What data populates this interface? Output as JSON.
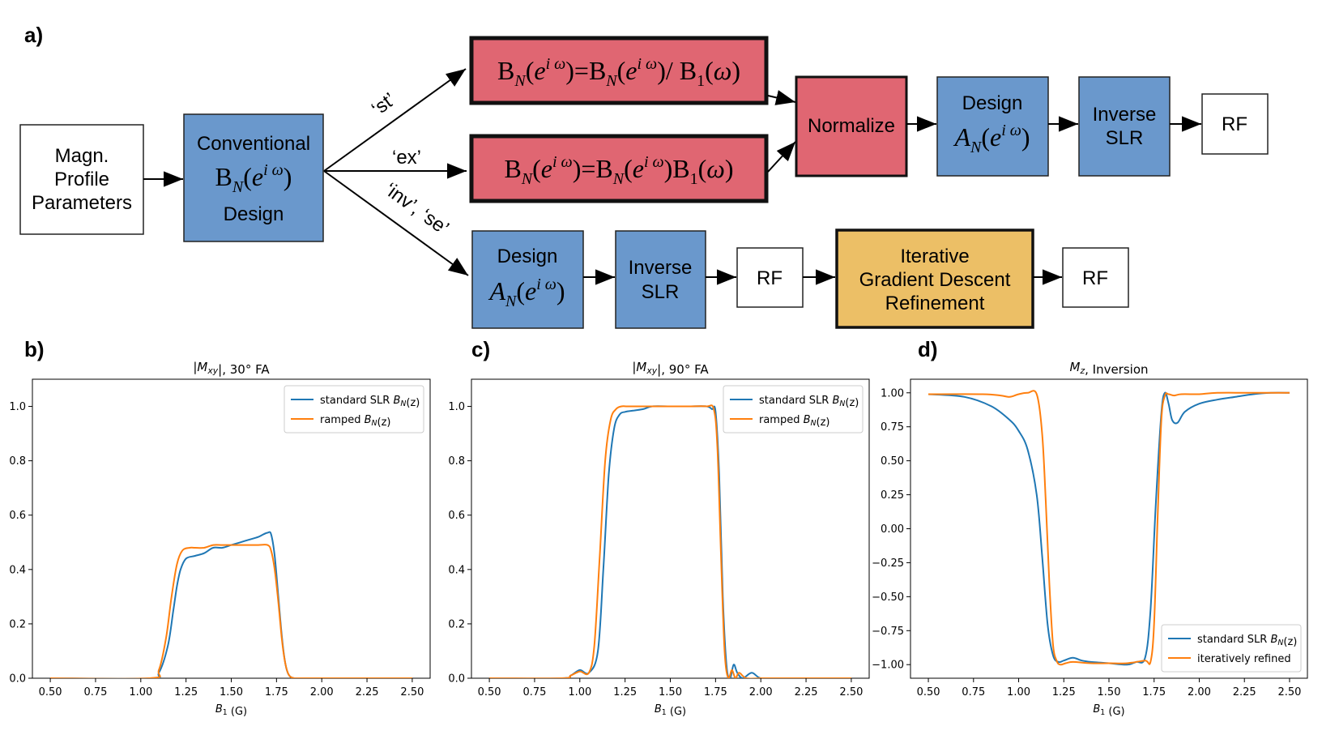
{
  "colors": {
    "blue_box": "#6a98cc",
    "red_box": "#e06672",
    "yellow_box": "#ecbf66",
    "series_blue": "#1f77b4",
    "series_orange": "#ff7f0e"
  },
  "diagram": {
    "panel_label": "a)",
    "magn_profile": [
      "Magn.",
      "Profile",
      "Parameters"
    ],
    "conventional": {
      "top": "Conventional",
      "bottom": "Design"
    },
    "branch_labels": {
      "st": "‘st’",
      "ex": "‘ex’",
      "inv_se": "‘inv’, ‘se’"
    },
    "normalize": "Normalize",
    "design_label": "Design",
    "inverse_slr": [
      "Inverse",
      "SLR"
    ],
    "rf": "RF",
    "iterative": [
      "Iterative",
      "Gradient Descent",
      "Refinement"
    ]
  },
  "chart_data": [
    {
      "type": "line",
      "panel_label": "b)",
      "title": "|M_xy|, 30° FA",
      "xlabel": "B1 (G)",
      "xlim": [
        0.5,
        2.5
      ],
      "ylim": [
        0.0,
        1.1
      ],
      "xticks": [
        "0.50",
        "0.75",
        "1.00",
        "1.25",
        "1.50",
        "1.75",
        "2.00",
        "2.25",
        "2.50"
      ],
      "yticks": [
        "0.0",
        "0.2",
        "0.4",
        "0.6",
        "0.8",
        "1.0"
      ],
      "legend_position": "top-right",
      "series": [
        {
          "name": "standard SLR B_N(z)",
          "color": "#1f77b4",
          "x": [
            0.5,
            1.05,
            1.1,
            1.15,
            1.18,
            1.2,
            1.22,
            1.25,
            1.3,
            1.35,
            1.4,
            1.45,
            1.5,
            1.55,
            1.6,
            1.65,
            1.68,
            1.7,
            1.72,
            1.74,
            1.76,
            1.78,
            1.8,
            1.82,
            1.85,
            1.9,
            2.5
          ],
          "y": [
            0.0,
            0.0,
            0.02,
            0.12,
            0.25,
            0.34,
            0.4,
            0.44,
            0.45,
            0.46,
            0.48,
            0.48,
            0.49,
            0.5,
            0.51,
            0.52,
            0.53,
            0.535,
            0.53,
            0.45,
            0.3,
            0.15,
            0.05,
            0.01,
            0.0,
            0.0,
            0.0
          ]
        },
        {
          "name": "ramped B_N(z)",
          "color": "#ff7f0e",
          "x": [
            0.5,
            1.05,
            1.1,
            1.14,
            1.17,
            1.2,
            1.23,
            1.27,
            1.3,
            1.35,
            1.4,
            1.45,
            1.5,
            1.55,
            1.6,
            1.65,
            1.7,
            1.72,
            1.74,
            1.76,
            1.78,
            1.8,
            1.82,
            1.85,
            1.9,
            2.5
          ],
          "y": [
            0.0,
            0.0,
            0.03,
            0.15,
            0.3,
            0.42,
            0.47,
            0.48,
            0.48,
            0.48,
            0.49,
            0.49,
            0.49,
            0.49,
            0.49,
            0.49,
            0.49,
            0.47,
            0.4,
            0.28,
            0.14,
            0.05,
            0.01,
            0.0,
            0.0,
            0.0
          ]
        }
      ]
    },
    {
      "type": "line",
      "panel_label": "c)",
      "title": "|M_xy|, 90° FA",
      "xlabel": "B1 (G)",
      "xlim": [
        0.5,
        2.5
      ],
      "ylim": [
        0.0,
        1.1
      ],
      "xticks": [
        "0.50",
        "0.75",
        "1.00",
        "1.25",
        "1.50",
        "1.75",
        "2.00",
        "2.25",
        "2.50"
      ],
      "yticks": [
        "0.0",
        "0.2",
        "0.4",
        "0.6",
        "0.8",
        "1.0"
      ],
      "legend_position": "top-right",
      "series": [
        {
          "name": "standard SLR B_N(z)",
          "color": "#1f77b4",
          "x": [
            0.5,
            0.9,
            0.95,
            1.0,
            1.05,
            1.1,
            1.13,
            1.16,
            1.19,
            1.22,
            1.25,
            1.3,
            1.35,
            1.4,
            1.5,
            1.6,
            1.7,
            1.73,
            1.75,
            1.77,
            1.79,
            1.81,
            1.83,
            1.85,
            1.87,
            1.9,
            1.95,
            2.0,
            2.1,
            2.5
          ],
          "y": [
            0.0,
            0.0,
            0.01,
            0.03,
            0.02,
            0.1,
            0.4,
            0.75,
            0.92,
            0.97,
            0.98,
            0.985,
            0.99,
            1.0,
            1.0,
            1.0,
            1.0,
            0.99,
            0.98,
            0.75,
            0.3,
            0.05,
            0.0,
            0.05,
            0.02,
            0.0,
            0.02,
            0.0,
            0.0,
            0.0
          ]
        },
        {
          "name": "ramped B_N(z)",
          "color": "#ff7f0e",
          "x": [
            0.5,
            0.9,
            0.95,
            1.0,
            1.05,
            1.08,
            1.11,
            1.14,
            1.17,
            1.2,
            1.23,
            1.26,
            1.3,
            1.4,
            1.5,
            1.6,
            1.7,
            1.74,
            1.76,
            1.78,
            1.8,
            1.82,
            1.84,
            1.86,
            1.88,
            1.92,
            2.0,
            2.1,
            2.5
          ],
          "y": [
            0.0,
            0.0,
            0.01,
            0.025,
            0.02,
            0.12,
            0.45,
            0.8,
            0.95,
            0.99,
            1.0,
            1.0,
            1.0,
            1.0,
            1.0,
            1.0,
            1.0,
            0.99,
            0.85,
            0.45,
            0.1,
            0.0,
            0.03,
            0.0,
            0.02,
            0.0,
            0.0,
            0.0,
            0.0
          ]
        }
      ]
    },
    {
      "type": "line",
      "panel_label": "d)",
      "title": "M_z, Inversion",
      "xlabel": "B1 (G)",
      "xlim": [
        0.5,
        2.5
      ],
      "ylim": [
        -1.1,
        1.1
      ],
      "xticks": [
        "0.50",
        "0.75",
        "1.00",
        "1.25",
        "1.50",
        "1.75",
        "2.00",
        "2.25",
        "2.50"
      ],
      "yticks": [
        "1.00",
        "0.75",
        "0.50",
        "0.25",
        "0.00",
        "−0.25",
        "−0.50",
        "−0.75",
        "−1.00"
      ],
      "legend_position": "bottom-right",
      "series": [
        {
          "name": "standard SLR B_N(z)",
          "color": "#1f77b4",
          "x": [
            0.5,
            0.7,
            0.85,
            0.95,
            1.0,
            1.05,
            1.1,
            1.13,
            1.16,
            1.19,
            1.22,
            1.25,
            1.3,
            1.35,
            1.4,
            1.5,
            1.6,
            1.65,
            1.7,
            1.73,
            1.76,
            1.79,
            1.81,
            1.83,
            1.85,
            1.88,
            1.92,
            2.0,
            2.1,
            2.2,
            2.3,
            2.4,
            2.5
          ],
          "y": [
            0.99,
            0.97,
            0.9,
            0.8,
            0.72,
            0.58,
            0.25,
            -0.2,
            -0.7,
            -0.93,
            -0.98,
            -0.97,
            -0.95,
            -0.97,
            -0.98,
            -0.99,
            -1.0,
            -0.98,
            -0.95,
            -0.6,
            0.2,
            0.85,
            1.0,
            0.92,
            0.8,
            0.78,
            0.86,
            0.92,
            0.95,
            0.97,
            0.99,
            1.0,
            1.0
          ]
        },
        {
          "name": "iteratively refined",
          "color": "#ff7f0e",
          "x": [
            0.5,
            0.8,
            0.9,
            0.95,
            1.0,
            1.05,
            1.1,
            1.13,
            1.15,
            1.17,
            1.19,
            1.21,
            1.23,
            1.26,
            1.3,
            1.4,
            1.5,
            1.6,
            1.7,
            1.73,
            1.75,
            1.77,
            1.79,
            1.81,
            1.83,
            1.86,
            1.9,
            2.0,
            2.1,
            2.3,
            2.5
          ],
          "y": [
            0.99,
            0.99,
            0.98,
            0.97,
            0.99,
            1.0,
            0.99,
            0.7,
            0.2,
            -0.4,
            -0.85,
            -0.97,
            -1.0,
            -0.99,
            -0.98,
            -0.99,
            -0.99,
            -0.99,
            -0.97,
            -0.98,
            -0.7,
            0.1,
            0.8,
            0.98,
            0.99,
            0.98,
            0.99,
            0.99,
            1.0,
            1.0,
            1.0
          ]
        }
      ]
    }
  ]
}
